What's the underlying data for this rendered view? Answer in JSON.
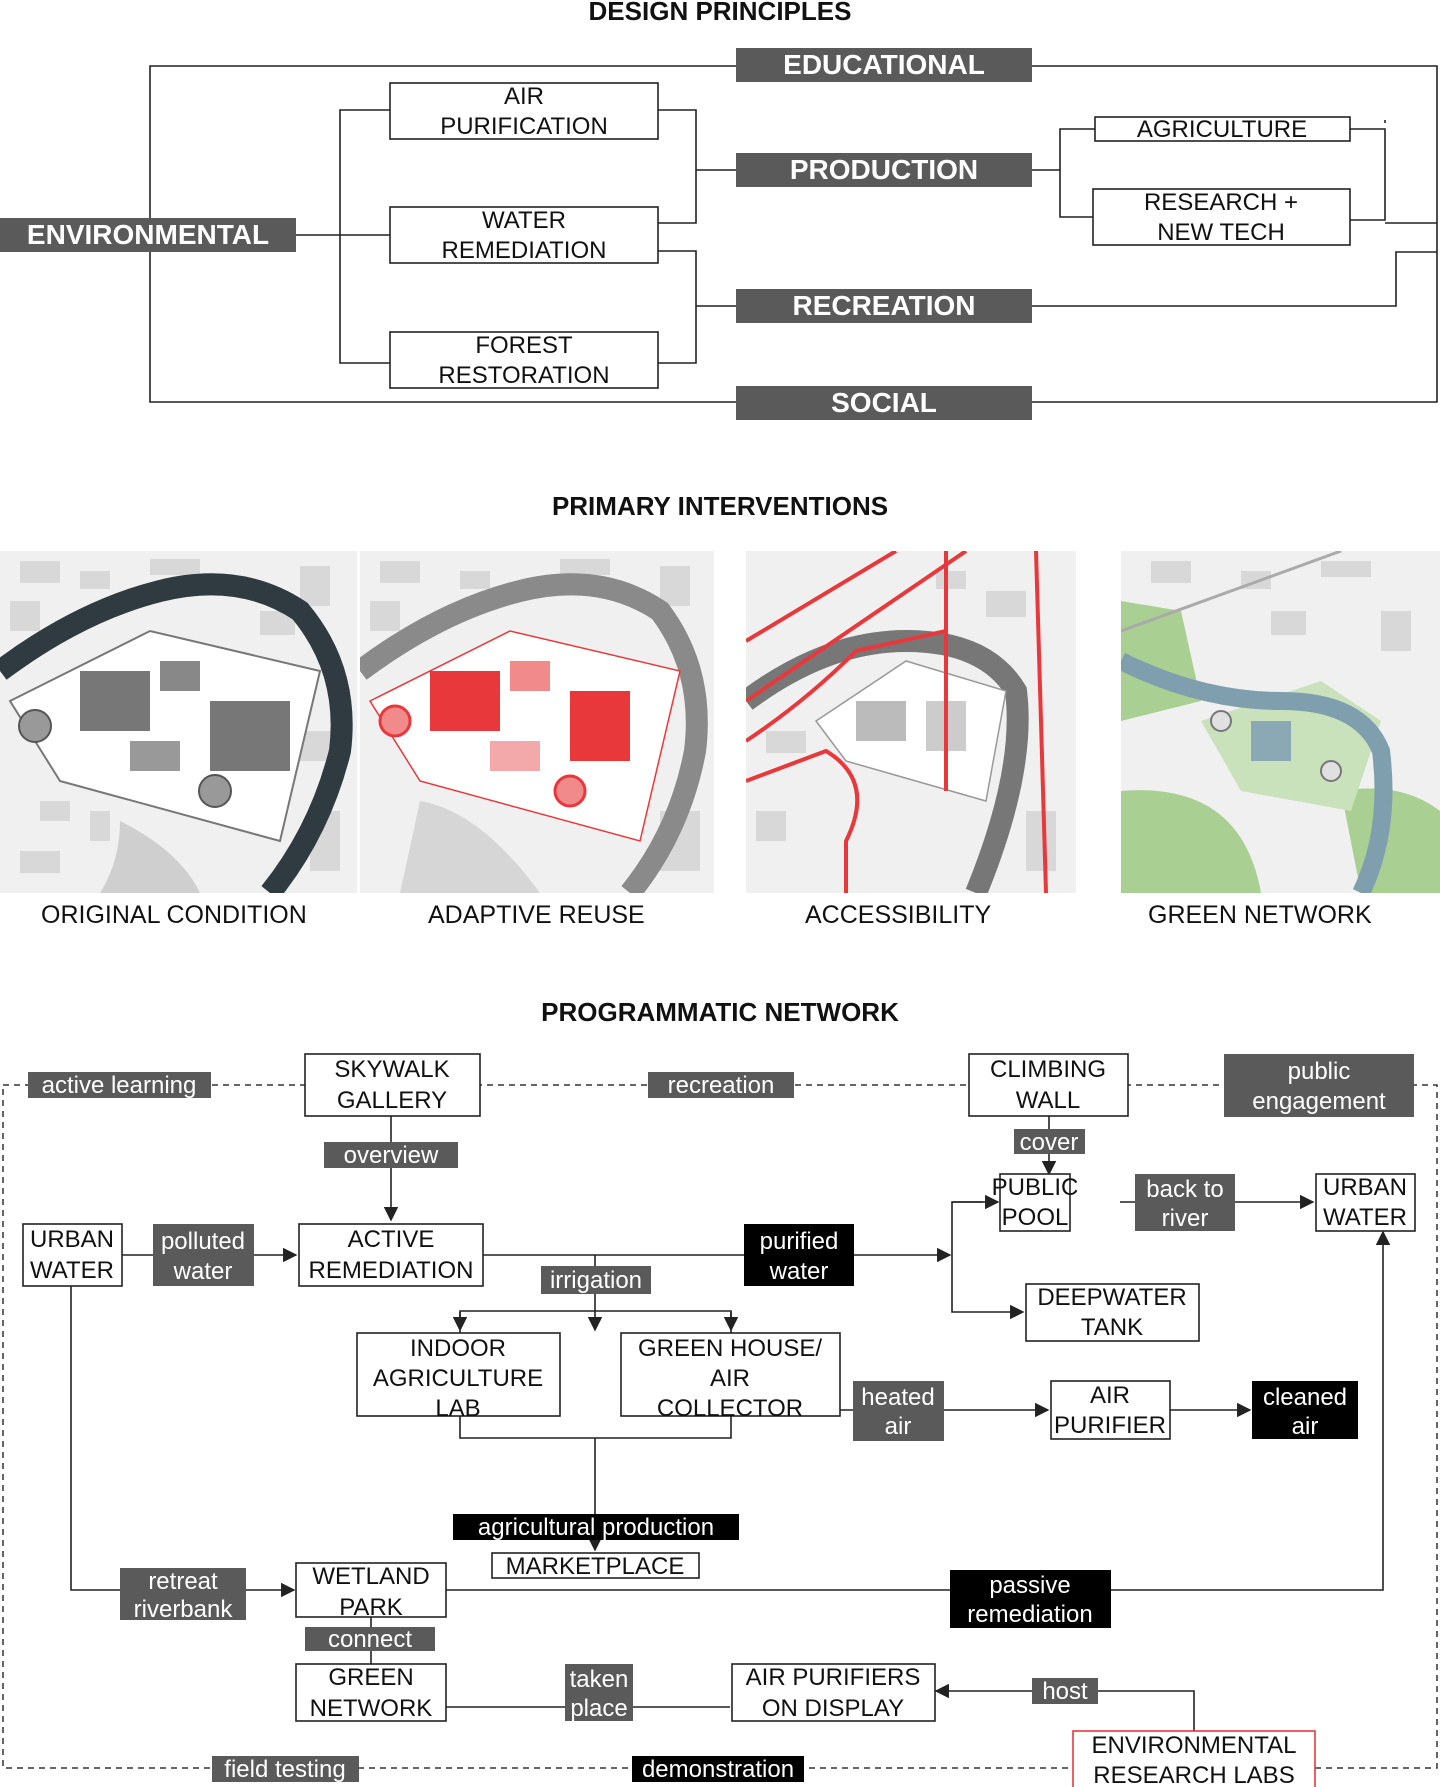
{
  "headings": {
    "design_principles": "DESIGN PRINCIPLES",
    "primary_interventions": "PRIMARY INTERVENTIONS",
    "programmatic_network": "PROGRAMMATIC NETWORK"
  },
  "principles": {
    "environmental": "ENVIRONMENTAL",
    "educational": "EDUCATIONAL",
    "production": "PRODUCTION",
    "recreation": "RECREATION",
    "social": "SOCIAL",
    "air_purification": [
      "AIR",
      "PURIFICATION"
    ],
    "water_remediation": [
      "WATER",
      "REMEDIATION"
    ],
    "forest_restoration": [
      "FOREST",
      "RESTORATION"
    ],
    "agriculture": "AGRICULTURE",
    "research": [
      "RESEARCH +",
      "NEW TECH"
    ]
  },
  "maps": {
    "original": "ORIGINAL CONDITION",
    "adaptive": "ADAPTIVE REUSE",
    "accessibility": "ACCESSIBILITY",
    "green": "GREEN NETWORK"
  },
  "colors": {
    "accent_red": "#e8383b",
    "river_dark": "#2f3b40",
    "green": "#a9cf93",
    "river_blue": "#7f9fae",
    "label_grey": "#5a5a5a"
  },
  "network": {
    "boxes": {
      "skywalk": [
        "SKYWALK",
        "GALLERY"
      ],
      "climbing": [
        "CLIMBING",
        "WALL"
      ],
      "public_pool": [
        "PUBLIC",
        "POOL"
      ],
      "urban_water_right": [
        "URBAN",
        "WATER"
      ],
      "urban_water_left": [
        "URBAN",
        "WATER"
      ],
      "active_remediation": [
        "ACTIVE",
        "REMEDIATION"
      ],
      "deepwater": [
        "DEEPWATER",
        "TANK"
      ],
      "indoor_ag": [
        "INDOOR",
        "AGRICULTURE",
        "LAB"
      ],
      "greenhouse": [
        "GREEN HOUSE/",
        "AIR",
        "COLLECTOR"
      ],
      "air_purifier": [
        "AIR",
        "PURIFIER"
      ],
      "marketplace": "MARKETPLACE",
      "wetland": [
        "WETLAND",
        "PARK"
      ],
      "green_network": [
        "GREEN",
        "NETWORK"
      ],
      "air_display": [
        "AIR PURIFIERS",
        "ON DISPLAY"
      ],
      "labs": [
        "ENVIRONMENTAL",
        "RESEARCH LABS"
      ]
    },
    "labels": {
      "active_learning": "active learning",
      "recreation": "recreation",
      "public_engagement": [
        "public",
        "engagement"
      ],
      "overview": "overview",
      "cover": "cover",
      "back_to_river": [
        "back to",
        "river"
      ],
      "polluted_water": [
        "polluted",
        "water"
      ],
      "purified_water": [
        "purified",
        "water"
      ],
      "irrigation": "irrigation",
      "heated_air": [
        "heated",
        "air"
      ],
      "cleaned_air": [
        "cleaned",
        "air"
      ],
      "agricultural_production": "agricultural production",
      "retreat_riverbank": [
        "retreat",
        "riverbank"
      ],
      "passive_remediation": [
        "passive",
        "remediation"
      ],
      "connect": "connect",
      "taken_place": [
        "taken",
        "place"
      ],
      "host": "host",
      "field_testing": "field testing",
      "demonstration": "demonstration"
    }
  }
}
